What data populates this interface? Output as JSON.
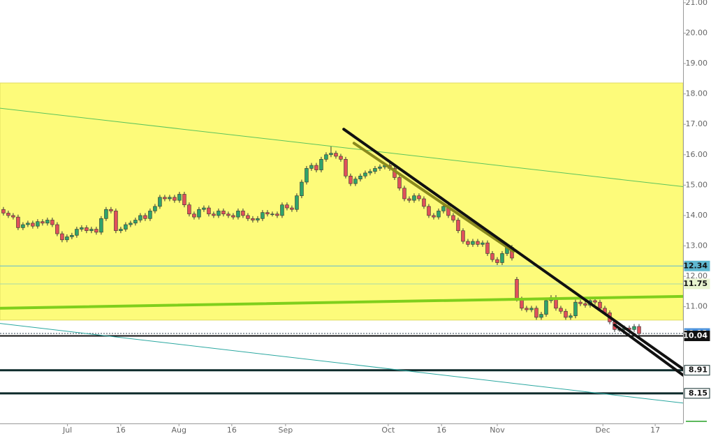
{
  "chart_data": {
    "type": "candlestick",
    "candle_colors": {
      "up": "#2fa36b",
      "down": "#e0505a",
      "outline": "#333333"
    },
    "xlim": [
      -0.7,
      139
    ],
    "ylim": [
      7.16,
      21.09
    ],
    "xticks": [
      {
        "value": 13.1,
        "label": "Jul"
      },
      {
        "value": 24,
        "label": "16"
      },
      {
        "value": 35.9,
        "label": "Aug"
      },
      {
        "value": 46.7,
        "label": "16"
      },
      {
        "value": 57.7,
        "label": "Sep"
      },
      {
        "value": 78.7,
        "label": "Oct"
      },
      {
        "value": 89.6,
        "label": "16"
      },
      {
        "value": 101,
        "label": "Nov"
      },
      {
        "value": 122.6,
        "label": "Dec"
      },
      {
        "value": 133.3,
        "label": "17"
      }
    ],
    "yticks": [
      {
        "value": 11,
        "label": "11.00"
      },
      {
        "value": 12,
        "label": "12.00"
      },
      {
        "value": 13,
        "label": "13.00"
      },
      {
        "value": 14,
        "label": "14.00"
      },
      {
        "value": 15,
        "label": "15.00"
      },
      {
        "value": 16,
        "label": "16.00"
      },
      {
        "value": 17,
        "label": "17.00"
      },
      {
        "value": 18,
        "label": "18.00"
      },
      {
        "value": 19,
        "label": "19.00"
      },
      {
        "value": 20,
        "label": "20.00"
      },
      {
        "value": 21,
        "label": "21.00"
      }
    ],
    "zone": {
      "range": [
        10.56,
        18.36
      ],
      "color": "#fdfb7a"
    },
    "trendlines": [
      {
        "x": [
          -0.7,
          139
        ],
        "y": [
          17.53,
          14.95
        ],
        "color": "#5cc45c",
        "width": 1
      },
      {
        "x": [
          -0.7,
          139
        ],
        "y": [
          10.95,
          11.34
        ],
        "color": "#7fcf1c",
        "width": 4
      },
      {
        "x": [
          -0.7,
          139
        ],
        "y": [
          10.45,
          7.83
        ],
        "color": "#2aa7a0",
        "width": 1
      },
      {
        "x": [
          71.7,
          104.3
        ],
        "y": [
          16.38,
          12.82
        ],
        "color": "#8a8a1e",
        "width": 4
      },
      {
        "x": [
          69.6,
          139
        ],
        "y": [
          16.84,
          8.95
        ],
        "color": "#111111",
        "width": 4
      },
      {
        "x": [
          125,
          139
        ],
        "y": [
          10.4,
          8.75
        ],
        "color": "#111111",
        "width": 4
      }
    ],
    "levels": [
      {
        "value": 12.34,
        "color": "#5fb8d0",
        "width": 1,
        "label_bg": "#5fb8d0",
        "label_color": "#111111"
      },
      {
        "value": 11.75,
        "color": "#a8d8a8",
        "width": 1,
        "label_bg": "#e8f4d0",
        "label_color": "#111111"
      },
      {
        "value": 10.12,
        "color": "#334455",
        "width": 1,
        "label_bg": "#4a90d9",
        "label_color": "#ffffff"
      },
      {
        "value": 10.04,
        "color": "#111111",
        "width": 2,
        "label_bg": "#111111",
        "label_color": "#ffffff"
      },
      {
        "value": 8.91,
        "color": "#0d2a2a",
        "width": 3,
        "label_bg": "#ffffff",
        "label_color": "#111111"
      },
      {
        "value": 8.15,
        "color": "#0d2a2a",
        "width": 3,
        "label_bg": "#ffffff",
        "label_color": "#111111"
      }
    ],
    "candles": [
      [
        14.2,
        14.28,
        14.0,
        14.08
      ],
      [
        14.08,
        14.16,
        13.92,
        14.0
      ],
      [
        14.0,
        14.08,
        13.87,
        13.95
      ],
      [
        13.95,
        14.03,
        13.52,
        13.6
      ],
      [
        13.6,
        13.78,
        13.52,
        13.7
      ],
      [
        13.7,
        13.83,
        13.62,
        13.75
      ],
      [
        13.75,
        13.83,
        13.57,
        13.65
      ],
      [
        13.65,
        13.88,
        13.57,
        13.8
      ],
      [
        13.8,
        13.88,
        13.67,
        13.75
      ],
      [
        13.75,
        13.93,
        13.67,
        13.85
      ],
      [
        13.85,
        13.93,
        13.62,
        13.7
      ],
      [
        13.7,
        13.78,
        13.32,
        13.4
      ],
      [
        13.4,
        13.48,
        13.12,
        13.2
      ],
      [
        13.2,
        13.38,
        13.12,
        13.3
      ],
      [
        13.3,
        13.43,
        13.22,
        13.35
      ],
      [
        13.35,
        13.63,
        13.27,
        13.55
      ],
      [
        13.55,
        13.68,
        13.47,
        13.6
      ],
      [
        13.6,
        13.68,
        13.42,
        13.5
      ],
      [
        13.5,
        13.63,
        13.42,
        13.55
      ],
      [
        13.55,
        13.63,
        13.37,
        13.45
      ],
      [
        13.45,
        13.98,
        13.37,
        13.9
      ],
      [
        13.9,
        14.28,
        13.82,
        14.2
      ],
      [
        14.2,
        14.28,
        14.07,
        14.15
      ],
      [
        14.15,
        14.23,
        13.42,
        13.5
      ],
      [
        13.5,
        13.63,
        13.42,
        13.55
      ],
      [
        13.55,
        13.78,
        13.47,
        13.7
      ],
      [
        13.7,
        13.83,
        13.62,
        13.75
      ],
      [
        13.75,
        13.93,
        13.67,
        13.85
      ],
      [
        13.85,
        14.08,
        13.77,
        14.0
      ],
      [
        14.0,
        14.08,
        13.82,
        13.9
      ],
      [
        13.9,
        14.23,
        13.82,
        14.15
      ],
      [
        14.15,
        14.38,
        14.07,
        14.3
      ],
      [
        14.3,
        14.68,
        14.22,
        14.6
      ],
      [
        14.6,
        14.68,
        14.47,
        14.55
      ],
      [
        14.55,
        14.68,
        14.47,
        14.6
      ],
      [
        14.6,
        14.68,
        14.42,
        14.5
      ],
      [
        14.5,
        14.78,
        14.42,
        14.7
      ],
      [
        14.7,
        14.78,
        14.27,
        14.35
      ],
      [
        14.35,
        14.43,
        13.97,
        14.05
      ],
      [
        14.05,
        14.13,
        13.87,
        13.95
      ],
      [
        13.95,
        14.28,
        13.87,
        14.2
      ],
      [
        14.2,
        14.33,
        14.12,
        14.25
      ],
      [
        14.25,
        14.33,
        13.97,
        14.05
      ],
      [
        14.05,
        14.13,
        13.92,
        14.0
      ],
      [
        14.0,
        14.23,
        13.92,
        14.15
      ],
      [
        14.15,
        14.23,
        13.97,
        14.05
      ],
      [
        14.05,
        14.13,
        13.92,
        14.0
      ],
      [
        14.0,
        14.08,
        13.87,
        13.95
      ],
      [
        13.95,
        14.23,
        13.87,
        14.15
      ],
      [
        14.15,
        14.23,
        13.92,
        14.0
      ],
      [
        14.0,
        14.08,
        13.82,
        13.9
      ],
      [
        13.9,
        13.98,
        13.77,
        13.85
      ],
      [
        13.85,
        13.98,
        13.77,
        13.9
      ],
      [
        13.9,
        14.18,
        13.82,
        14.1
      ],
      [
        14.1,
        14.18,
        13.97,
        14.05
      ],
      [
        14.05,
        14.13,
        13.97,
        14.05
      ],
      [
        14.05,
        14.13,
        13.92,
        14.0
      ],
      [
        14.0,
        14.43,
        13.92,
        14.35
      ],
      [
        14.35,
        14.43,
        14.17,
        14.25
      ],
      [
        14.25,
        14.33,
        14.12,
        14.2
      ],
      [
        14.2,
        14.73,
        14.12,
        14.65
      ],
      [
        14.65,
        15.18,
        14.57,
        15.1
      ],
      [
        15.1,
        15.63,
        15.02,
        15.55
      ],
      [
        15.55,
        15.73,
        15.47,
        15.65
      ],
      [
        15.65,
        15.73,
        15.42,
        15.5
      ],
      [
        15.5,
        15.93,
        15.42,
        15.85
      ],
      [
        15.85,
        16.08,
        15.77,
        16.0
      ],
      [
        16.0,
        16.28,
        15.92,
        16.05
      ],
      [
        16.05,
        16.13,
        15.87,
        15.95
      ],
      [
        15.95,
        16.03,
        15.77,
        15.85
      ],
      [
        15.85,
        15.93,
        15.22,
        15.3
      ],
      [
        15.3,
        15.38,
        14.97,
        15.05
      ],
      [
        15.05,
        15.28,
        14.97,
        15.2
      ],
      [
        15.2,
        15.38,
        15.12,
        15.3
      ],
      [
        15.3,
        15.48,
        15.22,
        15.4
      ],
      [
        15.4,
        15.53,
        15.32,
        15.45
      ],
      [
        15.45,
        15.63,
        15.37,
        15.55
      ],
      [
        15.55,
        15.68,
        15.47,
        15.6
      ],
      [
        15.6,
        15.73,
        15.52,
        15.65
      ],
      [
        15.65,
        15.73,
        15.47,
        15.55
      ],
      [
        15.55,
        15.63,
        15.17,
        15.25
      ],
      [
        15.25,
        15.33,
        14.82,
        14.9
      ],
      [
        14.9,
        14.98,
        14.47,
        14.55
      ],
      [
        14.55,
        14.63,
        14.42,
        14.5
      ],
      [
        14.5,
        14.73,
        14.42,
        14.65
      ],
      [
        14.65,
        14.73,
        14.47,
        14.55
      ],
      [
        14.55,
        14.63,
        14.22,
        14.3
      ],
      [
        14.3,
        14.38,
        13.92,
        14.0
      ],
      [
        14.0,
        14.08,
        13.87,
        13.95
      ],
      [
        13.95,
        14.23,
        13.87,
        14.15
      ],
      [
        14.15,
        14.38,
        14.07,
        14.3
      ],
      [
        14.3,
        14.38,
        13.92,
        14.0
      ],
      [
        14.0,
        14.08,
        13.77,
        13.85
      ],
      [
        13.85,
        13.93,
        13.42,
        13.5
      ],
      [
        13.5,
        13.58,
        13.07,
        13.15
      ],
      [
        13.15,
        13.23,
        12.97,
        13.05
      ],
      [
        13.05,
        13.23,
        12.97,
        13.15
      ],
      [
        13.15,
        13.23,
        12.97,
        13.05
      ],
      [
        13.05,
        13.18,
        12.97,
        13.1
      ],
      [
        13.1,
        13.18,
        12.67,
        12.75
      ],
      [
        12.75,
        12.83,
        12.47,
        12.55
      ],
      [
        12.55,
        12.63,
        12.37,
        12.45
      ],
      [
        12.45,
        12.83,
        12.37,
        12.75
      ],
      [
        12.75,
        13.03,
        12.67,
        12.95
      ],
      [
        12.95,
        13.03,
        12.52,
        12.6
      ],
      [
        11.9,
        11.98,
        11.17,
        11.25
      ],
      [
        11.25,
        11.33,
        10.87,
        10.95
      ],
      [
        10.95,
        11.03,
        10.82,
        10.9
      ],
      [
        10.9,
        11.03,
        10.82,
        10.95
      ],
      [
        10.95,
        11.03,
        10.57,
        10.65
      ],
      [
        10.65,
        10.83,
        10.57,
        10.75
      ],
      [
        10.75,
        11.28,
        10.67,
        11.2
      ],
      [
        11.2,
        11.38,
        11.12,
        11.3
      ],
      [
        11.3,
        11.38,
        10.87,
        10.95
      ],
      [
        10.95,
        11.03,
        10.77,
        10.85
      ],
      [
        10.85,
        10.93,
        10.57,
        10.65
      ],
      [
        10.65,
        10.78,
        10.57,
        10.7
      ],
      [
        10.7,
        11.23,
        10.62,
        11.15
      ],
      [
        11.15,
        11.23,
        11.02,
        11.1
      ],
      [
        11.1,
        11.18,
        10.97,
        11.05
      ],
      [
        11.05,
        11.28,
        10.97,
        11.2
      ],
      [
        11.2,
        11.28,
        11.07,
        11.15
      ],
      [
        11.15,
        11.23,
        10.87,
        10.95
      ],
      [
        10.95,
        11.03,
        10.72,
        10.8
      ],
      [
        10.8,
        10.88,
        10.42,
        10.5
      ],
      [
        10.5,
        10.58,
        10.17,
        10.25
      ],
      [
        10.25,
        10.33,
        10.17,
        10.25
      ],
      [
        10.25,
        10.38,
        10.17,
        10.3
      ],
      [
        10.3,
        10.38,
        10.17,
        10.25
      ],
      [
        10.25,
        10.43,
        10.17,
        10.35
      ],
      [
        10.35,
        10.43,
        10.04,
        10.12
      ]
    ]
  }
}
